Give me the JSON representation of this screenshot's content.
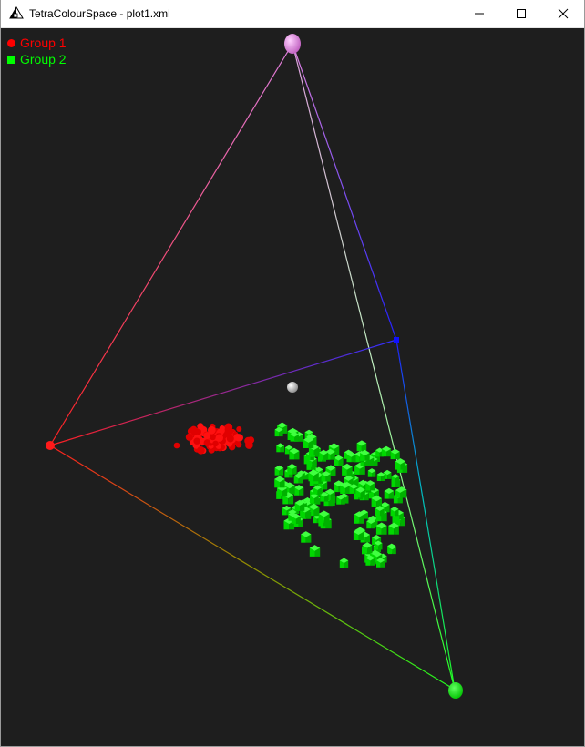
{
  "window": {
    "title": "TetraColourSpace - plot1.xml",
    "icon": "tetra-app-icon",
    "controls": [
      "minimize-icon",
      "maximize-icon",
      "close-icon"
    ]
  },
  "legend": {
    "items": [
      {
        "label": "Group 1",
        "color": "#ff0000",
        "marker": "sphere"
      },
      {
        "label": "Group 2",
        "color": "#00ff00",
        "marker": "cube"
      }
    ]
  },
  "vertex_colors": {
    "top": "#e080e0",
    "left": "#ff1a1a",
    "right": "#00ff00",
    "back": "#0000ff",
    "achromatic": "#dcdcdc"
  },
  "background_color": "#1e1e1e"
}
